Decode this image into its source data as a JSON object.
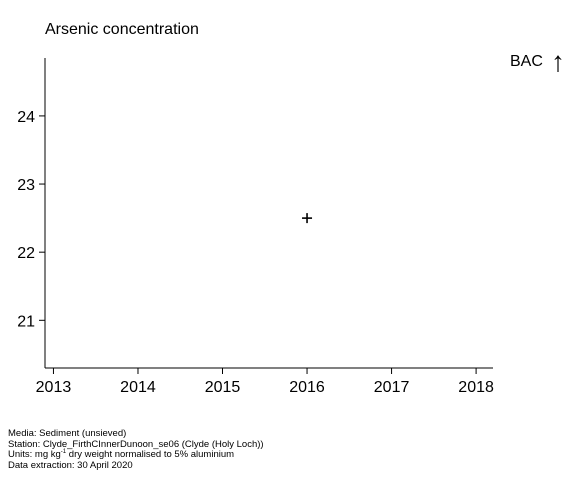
{
  "chart_data": {
    "type": "scatter",
    "title": "Arsenic concentration",
    "xlabel": "",
    "ylabel": "",
    "xlim": [
      2012.9,
      2018.2
    ],
    "ylim": [
      20.3,
      24.85
    ],
    "xticks": [
      2013,
      2014,
      2015,
      2016,
      2017,
      2018
    ],
    "yticks": [
      21,
      22,
      23,
      24
    ],
    "points": [
      {
        "x": 2016,
        "y": 22.5,
        "marker": "+"
      }
    ],
    "annotation": {
      "label": "BAC",
      "symbol": "↑"
    },
    "grid": false
  },
  "footer": {
    "media": "Media: Sediment (unsieved)",
    "station": "Station: Clyde_FirthCInnerDunoon_se06 (Clyde (Holy Loch))",
    "units_prefix": "Units:  mg kg",
    "units_sup": "-1",
    "units_suffix": " dry weight normalised to 5% aluminium",
    "extraction": "Data extraction: 30 April 2020"
  }
}
